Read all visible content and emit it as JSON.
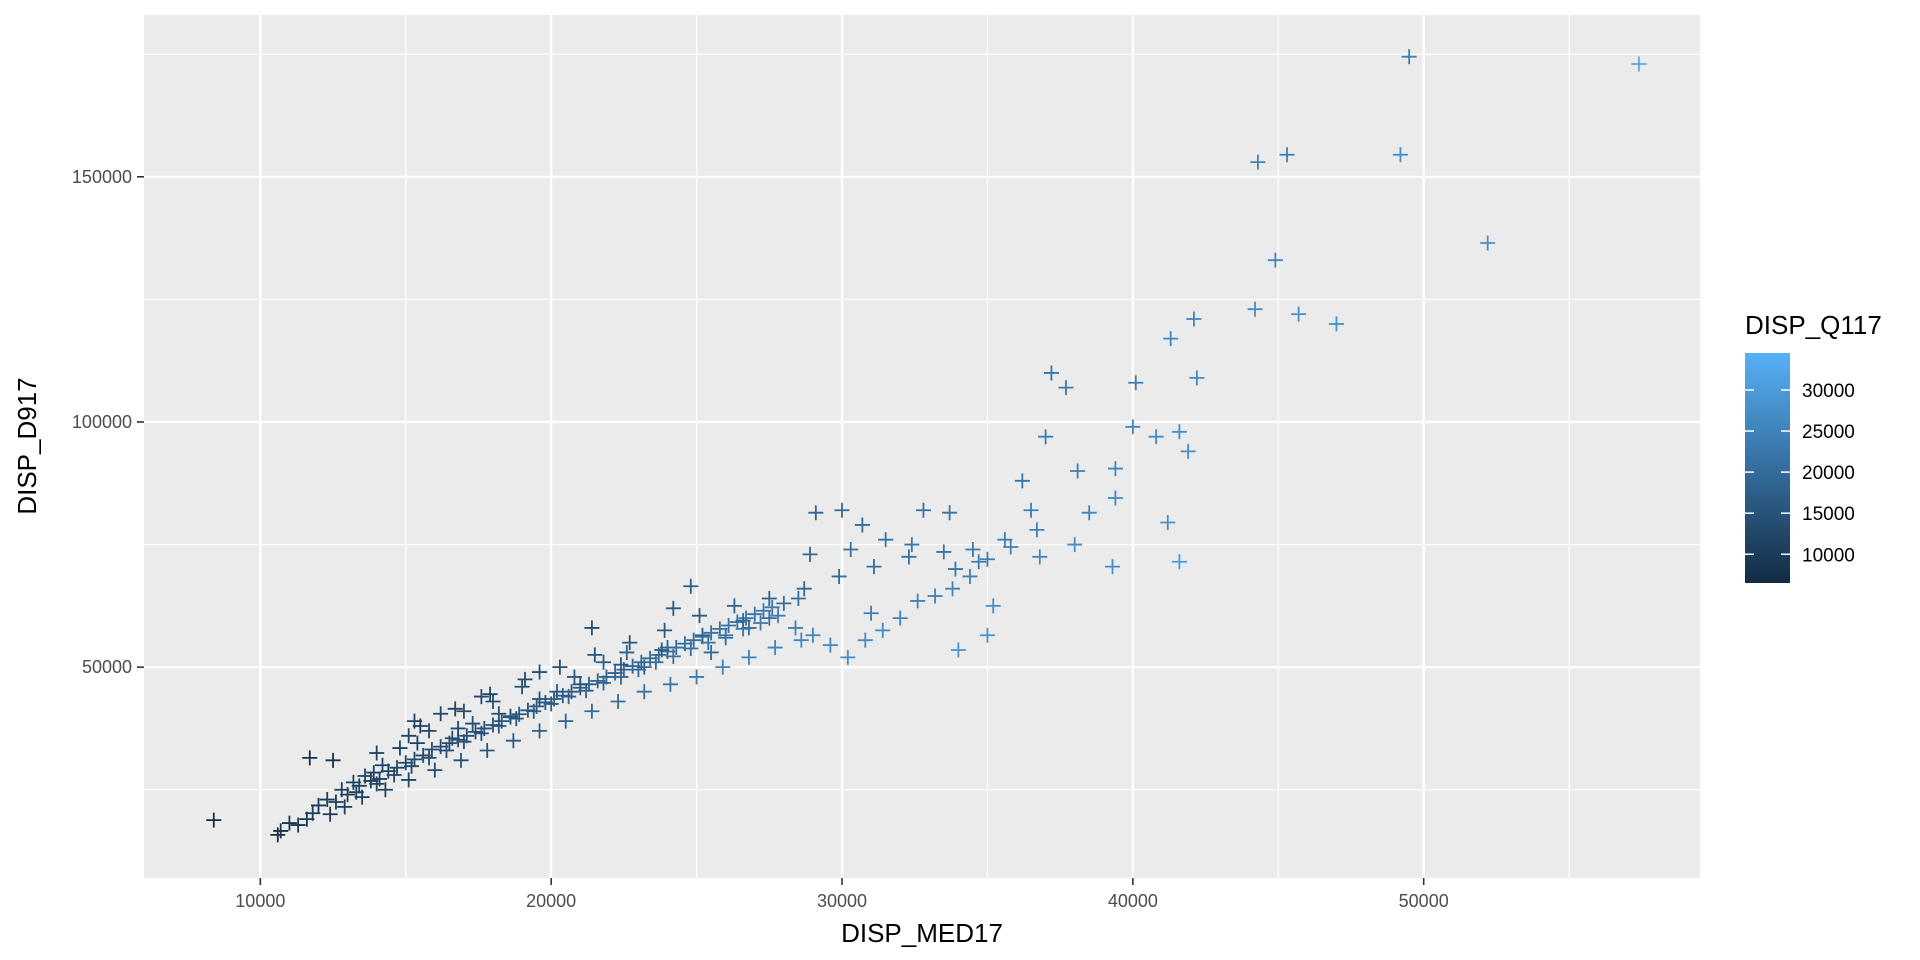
{
  "chart_data": {
    "type": "scatter",
    "marker": "plus",
    "xlabel": "DISP_MED17",
    "ylabel": "DISP_D917",
    "xlim": [
      6000,
      59500
    ],
    "ylim": [
      7000,
      183000
    ],
    "x_ticks": [
      10000,
      20000,
      30000,
      40000,
      50000
    ],
    "x_tick_labels": [
      "10000",
      "20000",
      "30000",
      "40000",
      "50000"
    ],
    "y_ticks": [
      50000,
      100000,
      150000
    ],
    "y_tick_labels": [
      "50000",
      "100000",
      "150000"
    ],
    "grid": true,
    "panel_background": "#ebebeb",
    "grid_color": "#ffffff",
    "legend": {
      "title": "DISP_Q117",
      "placement": "right",
      "type": "colorbar",
      "min": 6500,
      "max": 34500,
      "low_color": "#132b43",
      "high_color": "#56b1f7",
      "breaks": [
        10000,
        15000,
        20000,
        25000,
        30000
      ],
      "labels": [
        "10000",
        "15000",
        "20000",
        "25000",
        "30000"
      ]
    },
    "points": [
      [
        8400,
        18800,
        7000
      ],
      [
        10600,
        15800,
        8000
      ],
      [
        10700,
        16600,
        8200
      ],
      [
        11000,
        18200,
        9000
      ],
      [
        11300,
        17800,
        9200
      ],
      [
        11600,
        19000,
        9500
      ],
      [
        11800,
        20200,
        9800
      ],
      [
        11700,
        31500,
        8000
      ],
      [
        12500,
        31000,
        8500
      ],
      [
        12000,
        21800,
        10000
      ],
      [
        12300,
        23000,
        10300
      ],
      [
        12800,
        25000,
        10800
      ],
      [
        13200,
        26500,
        11000
      ],
      [
        13600,
        27800,
        11200
      ],
      [
        13900,
        28500,
        11500
      ],
      [
        14200,
        30000,
        11800
      ],
      [
        14800,
        33500,
        11500
      ],
      [
        15100,
        36000,
        12000
      ],
      [
        15300,
        39000,
        11500
      ],
      [
        15800,
        37000,
        12500
      ],
      [
        16200,
        40500,
        12000
      ],
      [
        16600,
        35500,
        13500
      ],
      [
        17000,
        41000,
        13000
      ],
      [
        17300,
        38500,
        13800
      ],
      [
        17600,
        44000,
        13000
      ],
      [
        18000,
        43000,
        13500
      ],
      [
        18600,
        40000,
        15000
      ],
      [
        19000,
        46000,
        14000
      ],
      [
        19600,
        49000,
        14500
      ],
      [
        20200,
        45000,
        16000
      ],
      [
        20800,
        48000,
        16500
      ],
      [
        21400,
        58000,
        14000
      ],
      [
        21800,
        51000,
        17000
      ],
      [
        22600,
        53000,
        17500
      ],
      [
        23200,
        50000,
        18500
      ],
      [
        24000,
        54000,
        18000
      ],
      [
        24200,
        62000,
        16500
      ],
      [
        24800,
        66500,
        17000
      ],
      [
        25500,
        53000,
        19500
      ],
      [
        26000,
        56000,
        20000
      ],
      [
        26800,
        58000,
        20500
      ],
      [
        27500,
        60000,
        21000
      ],
      [
        28000,
        63000,
        20500
      ],
      [
        28500,
        64000,
        21000
      ],
      [
        28900,
        73000,
        19000
      ],
      [
        29100,
        81500,
        18500
      ],
      [
        30000,
        82000,
        19500
      ],
      [
        30300,
        74000,
        21000
      ],
      [
        30700,
        79000,
        20000
      ],
      [
        31500,
        76000,
        21500
      ],
      [
        32400,
        75000,
        22500
      ],
      [
        32800,
        82000,
        21000
      ],
      [
        33700,
        81500,
        21500
      ],
      [
        33900,
        70000,
        22500
      ],
      [
        34500,
        74000,
        23000
      ],
      [
        35000,
        72000,
        23500
      ],
      [
        35600,
        76000,
        24000
      ],
      [
        36200,
        88000,
        22000
      ],
      [
        36500,
        82000,
        24000
      ],
      [
        36700,
        78000,
        24500
      ],
      [
        37000,
        97000,
        23500
      ],
      [
        37200,
        110000,
        22000
      ],
      [
        37700,
        107000,
        23000
      ],
      [
        38100,
        90000,
        24000
      ],
      [
        38500,
        81500,
        25000
      ],
      [
        39400,
        90500,
        25500
      ],
      [
        39400,
        84500,
        26000
      ],
      [
        39300,
        70500,
        27000
      ],
      [
        40000,
        99000,
        25000
      ],
      [
        40100,
        108000,
        24000
      ],
      [
        40800,
        97000,
        26500
      ],
      [
        41200,
        79500,
        28000
      ],
      [
        41300,
        117000,
        26000
      ],
      [
        41600,
        98000,
        27500
      ],
      [
        41600,
        71500,
        30000
      ],
      [
        41900,
        94000,
        27000
      ],
      [
        42100,
        121000,
        25000
      ],
      [
        42200,
        109000,
        26500
      ],
      [
        44200,
        123000,
        27000
      ],
      [
        44300,
        153000,
        25000
      ],
      [
        44900,
        133000,
        26000
      ],
      [
        45300,
        154500,
        24000
      ],
      [
        45700,
        122000,
        27500
      ],
      [
        47000,
        120000,
        28000
      ],
      [
        49200,
        154500,
        26500
      ],
      [
        49500,
        174500,
        24000
      ],
      [
        52200,
        136500,
        27500
      ],
      [
        57400,
        173000,
        33500
      ],
      [
        12600,
        22500,
        10500
      ],
      [
        13000,
        24000,
        10800
      ],
      [
        13400,
        25800,
        11000
      ],
      [
        13800,
        26800,
        11400
      ],
      [
        14100,
        27200,
        11700
      ],
      [
        14400,
        28800,
        11900
      ],
      [
        14700,
        29500,
        12200
      ],
      [
        15000,
        30500,
        12400
      ],
      [
        15300,
        31200,
        12700
      ],
      [
        15600,
        32000,
        12900
      ],
      [
        15900,
        33200,
        13100
      ],
      [
        16200,
        33800,
        13400
      ],
      [
        16500,
        34500,
        13600
      ],
      [
        16800,
        35200,
        13900
      ],
      [
        17100,
        36000,
        14100
      ],
      [
        17400,
        36800,
        14400
      ],
      [
        17700,
        37500,
        14600
      ],
      [
        18000,
        38200,
        14900
      ],
      [
        18300,
        39000,
        15100
      ],
      [
        18600,
        39800,
        15400
      ],
      [
        18900,
        40400,
        15600
      ],
      [
        19200,
        41200,
        15900
      ],
      [
        19500,
        42000,
        16100
      ],
      [
        19800,
        42800,
        16400
      ],
      [
        20100,
        43500,
        16600
      ],
      [
        20400,
        44200,
        16900
      ],
      [
        20700,
        45000,
        17100
      ],
      [
        21000,
        45800,
        17400
      ],
      [
        21300,
        46500,
        17600
      ],
      [
        21600,
        47200,
        17900
      ],
      [
        21900,
        48000,
        18100
      ],
      [
        22200,
        48800,
        18400
      ],
      [
        22500,
        49500,
        18600
      ],
      [
        22800,
        50200,
        18900
      ],
      [
        23100,
        51000,
        19100
      ],
      [
        23400,
        51800,
        19400
      ],
      [
        23700,
        52500,
        19600
      ],
      [
        24000,
        53200,
        19900
      ],
      [
        24300,
        54000,
        20100
      ],
      [
        24600,
        54800,
        20400
      ],
      [
        24900,
        55500,
        20600
      ],
      [
        25200,
        56200,
        20900
      ],
      [
        25500,
        57000,
        21100
      ],
      [
        25800,
        57800,
        21400
      ],
      [
        26100,
        58500,
        21600
      ],
      [
        26400,
        59200,
        21900
      ],
      [
        26700,
        60000,
        22100
      ],
      [
        27000,
        60800,
        22400
      ],
      [
        27300,
        61500,
        22600
      ],
      [
        27600,
        62200,
        22900
      ],
      [
        13300,
        24500,
        11500
      ],
      [
        14000,
        26200,
        12000
      ],
      [
        14600,
        28000,
        12500
      ],
      [
        15200,
        29800,
        13000
      ],
      [
        15800,
        31500,
        13500
      ],
      [
        16400,
        33000,
        14000
      ],
      [
        17000,
        34800,
        14500
      ],
      [
        17600,
        36500,
        15000
      ],
      [
        18200,
        38000,
        15500
      ],
      [
        18800,
        39500,
        16000
      ],
      [
        19400,
        41000,
        16500
      ],
      [
        20000,
        42500,
        17000
      ],
      [
        20600,
        44000,
        17500
      ],
      [
        21200,
        45200,
        18000
      ],
      [
        21800,
        46800,
        18500
      ],
      [
        22400,
        48000,
        19000
      ],
      [
        23000,
        49500,
        19500
      ],
      [
        23600,
        51000,
        20000
      ],
      [
        24200,
        52200,
        20500
      ],
      [
        24800,
        53800,
        21000
      ],
      [
        25400,
        55000,
        21500
      ],
      [
        26000,
        56500,
        22000
      ],
      [
        26600,
        57800,
        22500
      ],
      [
        27200,
        59000,
        23000
      ],
      [
        27800,
        60500,
        23500
      ],
      [
        28400,
        58000,
        24500
      ],
      [
        29000,
        56500,
        25000
      ],
      [
        29600,
        54500,
        26000
      ],
      [
        30200,
        52000,
        27000
      ],
      [
        30800,
        55500,
        26500
      ],
      [
        31400,
        57500,
        26000
      ],
      [
        32000,
        60000,
        25500
      ],
      [
        32600,
        63500,
        25000
      ],
      [
        33200,
        64500,
        25500
      ],
      [
        33800,
        66000,
        25000
      ],
      [
        34400,
        68500,
        24500
      ],
      [
        35000,
        56500,
        28000
      ],
      [
        35200,
        62500,
        27000
      ],
      [
        34000,
        53500,
        28500
      ],
      [
        31000,
        61000,
        24000
      ],
      [
        12400,
        20000,
        9500
      ],
      [
        12900,
        21500,
        10000
      ],
      [
        13500,
        23500,
        10500
      ],
      [
        14300,
        25000,
        11500
      ],
      [
        15100,
        27000,
        12500
      ],
      [
        16000,
        29000,
        13500
      ],
      [
        16900,
        31000,
        14500
      ],
      [
        17800,
        33000,
        15500
      ],
      [
        18700,
        35000,
        16500
      ],
      [
        19600,
        37000,
        17500
      ],
      [
        20500,
        39000,
        18500
      ],
      [
        21400,
        41000,
        19500
      ],
      [
        22300,
        43000,
        20500
      ],
      [
        23200,
        45000,
        21500
      ],
      [
        24100,
        46500,
        22500
      ],
      [
        25000,
        48000,
        23500
      ],
      [
        25900,
        50000,
        24500
      ],
      [
        26800,
        52000,
        25000
      ],
      [
        27700,
        54000,
        25500
      ],
      [
        28600,
        55500,
        26000
      ],
      [
        15500,
        38000,
        11000
      ],
      [
        16700,
        41500,
        11800
      ],
      [
        17900,
        44500,
        12500
      ],
      [
        19100,
        47500,
        13200
      ],
      [
        20300,
        50000,
        14000
      ],
      [
        21500,
        52500,
        14800
      ],
      [
        22700,
        55000,
        15500
      ],
      [
        23900,
        57500,
        16200
      ],
      [
        25100,
        60500,
        17000
      ],
      [
        26300,
        62500,
        17800
      ],
      [
        27500,
        64000,
        18500
      ],
      [
        28700,
        66000,
        19200
      ],
      [
        29900,
        68500,
        20000
      ],
      [
        31100,
        70500,
        20800
      ],
      [
        32300,
        72500,
        21500
      ],
      [
        33500,
        73500,
        22200
      ],
      [
        34700,
        71500,
        23500
      ],
      [
        35800,
        74500,
        24500
      ],
      [
        36800,
        72500,
        26000
      ],
      [
        38000,
        75000,
        27000
      ],
      [
        14000,
        32500,
        10500
      ],
      [
        15400,
        34500,
        11500
      ],
      [
        16800,
        37500,
        12500
      ],
      [
        18200,
        40500,
        13500
      ],
      [
        19600,
        43500,
        14500
      ],
      [
        21000,
        46500,
        15500
      ],
      [
        22400,
        50500,
        16000
      ],
      [
        23800,
        53500,
        17000
      ],
      [
        25200,
        56500,
        18000
      ],
      [
        26600,
        59500,
        19000
      ]
    ]
  }
}
